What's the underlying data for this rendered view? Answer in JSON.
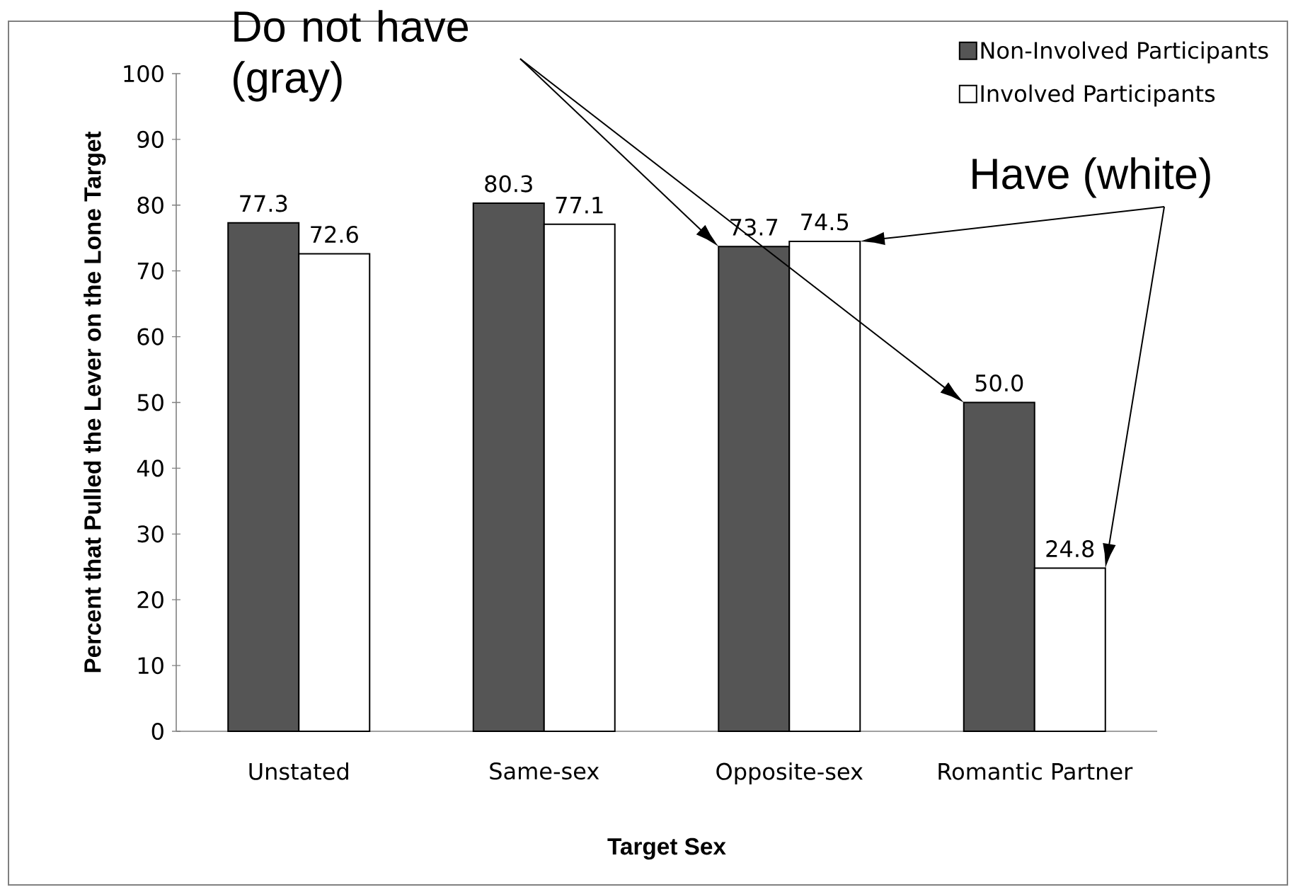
{
  "chart_data": {
    "type": "bar",
    "xlabel": "Target Sex",
    "ylabel": "Percent that Pulled the Lever on the Lone Target",
    "categories": [
      "Unstated",
      "Same-sex",
      "Opposite-sex",
      "Romantic Partner"
    ],
    "series": [
      {
        "name": "Non-Involved Participants",
        "color": "#555555",
        "values": [
          77.3,
          80.3,
          73.7,
          50.0
        ],
        "value_labels": [
          "77.3",
          "80.3",
          "73.7",
          "50.0"
        ]
      },
      {
        "name": "Involved Participants",
        "color": "#ffffff",
        "values": [
          72.6,
          77.1,
          74.5,
          24.8
        ],
        "value_labels": [
          "72.6",
          "77.1",
          "74.5",
          "24.8"
        ]
      }
    ],
    "ylim": [
      0,
      100
    ],
    "yticks": [
      0,
      10,
      20,
      30,
      40,
      50,
      60,
      70,
      80,
      90,
      100
    ],
    "grid": false,
    "legend": "top right",
    "annotations": [
      "Do not have (gray)",
      "Have (white)"
    ]
  }
}
